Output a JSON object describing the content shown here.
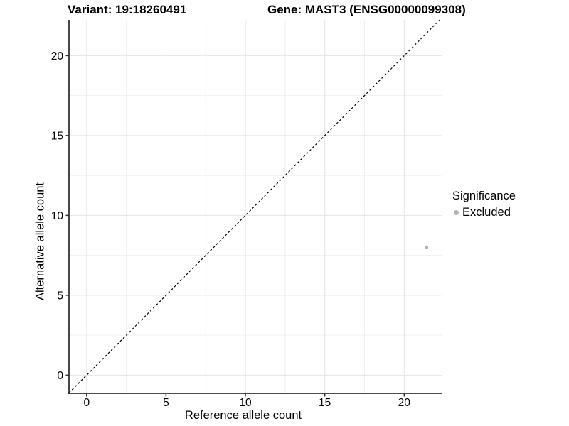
{
  "page": {
    "background": "#ffffff"
  },
  "chart_data": {
    "type": "scatter",
    "title_left": "Variant: 19:18260491",
    "title_right": "Gene: MAST3 (ENSG00000099308)",
    "xlabel": "Reference allele count",
    "ylabel": "Alternative allele count",
    "xlim": [
      -1.11,
      22.36
    ],
    "ylim": [
      -1.14,
      22.24
    ],
    "xticks": [
      0,
      5,
      10,
      15,
      20
    ],
    "yticks": [
      0,
      5,
      10,
      15,
      20
    ],
    "grid": {
      "major": true,
      "minor": true
    },
    "identity_line": {
      "style": "dashed",
      "slope": 1,
      "intercept": 0,
      "color": "#000000"
    },
    "series": [
      {
        "name": "Excluded",
        "color": "#b3b3b3",
        "points": [
          {
            "x": 21.4,
            "y": 8
          }
        ]
      }
    ],
    "legend": {
      "title": "Significance",
      "position": "right",
      "items": [
        {
          "label": "Excluded",
          "color": "#b3b3b3"
        }
      ]
    },
    "colors": {
      "axis": "#333333",
      "grid_major": "#e4e4e4",
      "grid_minor": "#f0f0f0",
      "tick": "#333333",
      "text": "#000000"
    }
  }
}
